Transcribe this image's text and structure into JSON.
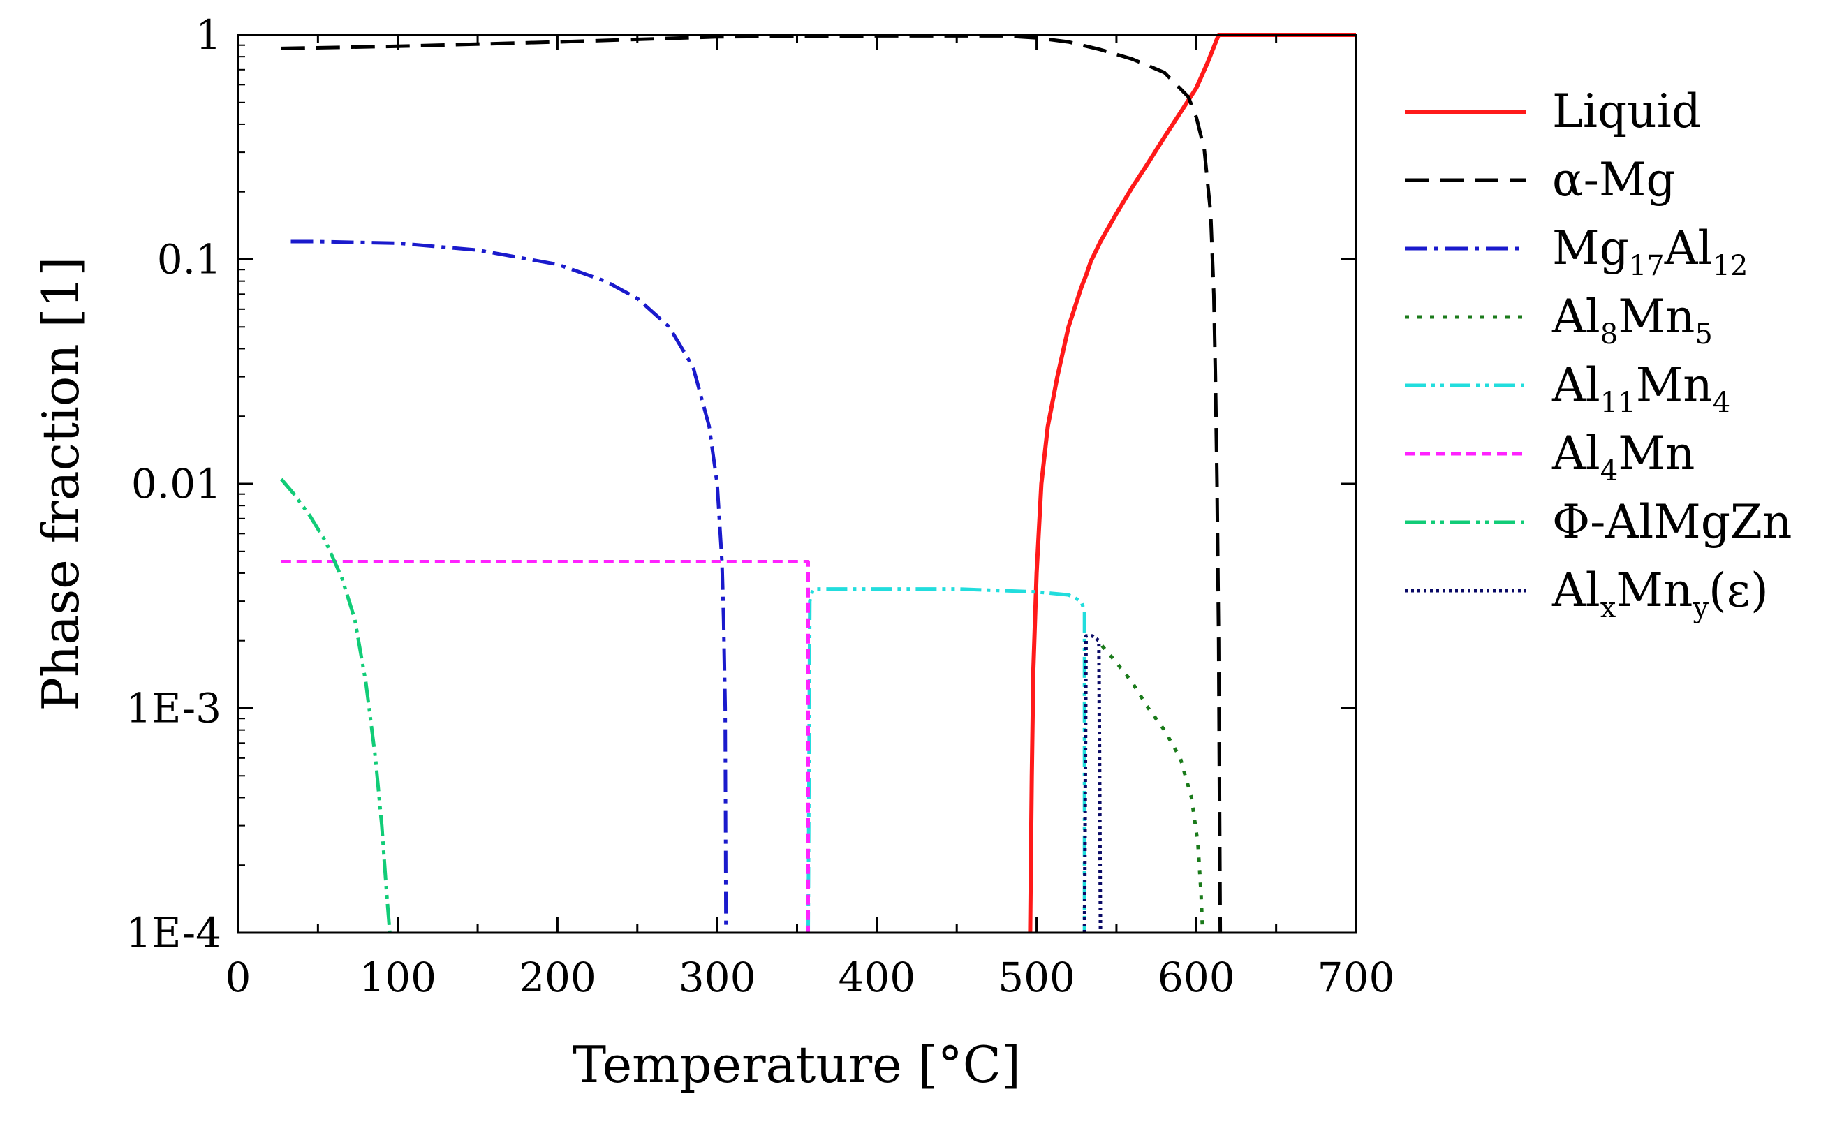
{
  "chart_data": {
    "type": "line",
    "title": "",
    "xlabel": "Temperature [°C]",
    "ylabel": "Phase fraction [1]",
    "xlim": [
      0,
      700
    ],
    "ylim": [
      0.0001,
      1
    ],
    "yscale": "log",
    "x_ticks": [
      0,
      100,
      200,
      300,
      400,
      500,
      600,
      700
    ],
    "x_tick_labels": [
      "0",
      "100",
      "200",
      "300",
      "400",
      "500",
      "600",
      "700"
    ],
    "y_ticks": [
      1,
      0.1,
      0.01,
      0.001,
      0.0001
    ],
    "y_tick_labels": [
      "1",
      "0.1",
      "0.01",
      "1E-3",
      "1E-4"
    ],
    "grid": false,
    "legend_position": "right",
    "series": [
      {
        "name": "Liquid",
        "legend": [
          {
            "t": "Liquid"
          }
        ],
        "color": "#ff1a1a",
        "dash": "solid",
        "points": [
          [
            496,
            0.0001
          ],
          [
            497,
            0.0005
          ],
          [
            498,
            0.0015
          ],
          [
            500,
            0.004
          ],
          [
            503,
            0.01
          ],
          [
            507,
            0.018
          ],
          [
            513,
            0.03
          ],
          [
            520,
            0.05
          ],
          [
            528,
            0.075
          ],
          [
            531,
            0.085
          ],
          [
            534,
            0.098
          ],
          [
            540,
            0.12
          ],
          [
            550,
            0.16
          ],
          [
            560,
            0.21
          ],
          [
            570,
            0.27
          ],
          [
            580,
            0.35
          ],
          [
            590,
            0.45
          ],
          [
            600,
            0.58
          ],
          [
            607,
            0.75
          ],
          [
            614,
            1.0
          ],
          [
            700,
            1.0
          ]
        ]
      },
      {
        "name": "α-Mg",
        "legend": [
          {
            "t": "α-Mg"
          }
        ],
        "color": "#000000",
        "dash": "long-dash",
        "points": [
          [
            27,
            0.87
          ],
          [
            100,
            0.89
          ],
          [
            200,
            0.93
          ],
          [
            300,
            0.98
          ],
          [
            400,
            0.99
          ],
          [
            480,
            0.99
          ],
          [
            500,
            0.97
          ],
          [
            520,
            0.93
          ],
          [
            540,
            0.86
          ],
          [
            560,
            0.78
          ],
          [
            580,
            0.68
          ],
          [
            595,
            0.53
          ],
          [
            600,
            0.43
          ],
          [
            605,
            0.31
          ],
          [
            609,
            0.16
          ],
          [
            611,
            0.07
          ],
          [
            612,
            0.03
          ],
          [
            613,
            0.01
          ],
          [
            614,
            0.002
          ],
          [
            615,
            0.0001
          ]
        ]
      },
      {
        "name": "Mg17Al12",
        "legend": [
          {
            "t": "Mg"
          },
          {
            "t": "17",
            "sub": true
          },
          {
            "t": "Al"
          },
          {
            "t": "12",
            "sub": true
          }
        ],
        "color": "#1a1acc",
        "dash": "dash-dot",
        "points": [
          [
            33,
            0.12
          ],
          [
            50,
            0.12
          ],
          [
            100,
            0.118
          ],
          [
            150,
            0.11
          ],
          [
            200,
            0.095
          ],
          [
            230,
            0.08
          ],
          [
            250,
            0.067
          ],
          [
            270,
            0.05
          ],
          [
            285,
            0.033
          ],
          [
            295,
            0.018
          ],
          [
            300,
            0.01
          ],
          [
            303,
            0.0045
          ],
          [
            304,
            0.0025
          ],
          [
            305,
            0.001
          ],
          [
            305.5,
            0.0001
          ]
        ]
      },
      {
        "name": "Al8Mn5",
        "legend": [
          {
            "t": "Al"
          },
          {
            "t": "8",
            "sub": true
          },
          {
            "t": "Mn"
          },
          {
            "t": "5",
            "sub": true
          }
        ],
        "color": "#1a7a1a",
        "dash": "dot",
        "points": [
          [
            541,
            0.0019
          ],
          [
            550,
            0.0016
          ],
          [
            560,
            0.0013
          ],
          [
            570,
            0.001
          ],
          [
            580,
            0.0008
          ],
          [
            590,
            0.0006
          ],
          [
            597,
            0.0004
          ],
          [
            601,
            0.00025
          ],
          [
            603,
            0.00015
          ],
          [
            604,
            0.0001
          ]
        ]
      },
      {
        "name": "Al11Mn4",
        "legend": [
          {
            "t": "Al"
          },
          {
            "t": "11",
            "sub": true
          },
          {
            "t": "Mn"
          },
          {
            "t": "4",
            "sub": true
          }
        ],
        "color": "#22dddd",
        "dash": "dash-dot-dot",
        "points": [
          [
            357,
            0.0001
          ],
          [
            358,
            0.003
          ],
          [
            360,
            0.0034
          ],
          [
            400,
            0.0034
          ],
          [
            450,
            0.0034
          ],
          [
            500,
            0.0033
          ],
          [
            520,
            0.0032
          ],
          [
            528,
            0.003
          ],
          [
            530,
            0.0027
          ],
          [
            530,
            0.0001
          ]
        ]
      },
      {
        "name": "Al4Mn",
        "legend": [
          {
            "t": "Al"
          },
          {
            "t": "4",
            "sub": true
          },
          {
            "t": "Mn"
          }
        ],
        "color": "#ff22ff",
        "dash": "short-dash",
        "points": [
          [
            27,
            0.0045
          ],
          [
            357,
            0.0045
          ],
          [
            357,
            0.0001
          ]
        ]
      },
      {
        "name": "Φ-AlMgZn",
        "legend": [
          {
            "t": "Φ-AlMgZn"
          }
        ],
        "color": "#11cc77",
        "dash": "dash-dot-dot",
        "points": [
          [
            27,
            0.0105
          ],
          [
            35,
            0.009
          ],
          [
            45,
            0.0072
          ],
          [
            55,
            0.0055
          ],
          [
            65,
            0.0038
          ],
          [
            73,
            0.0025
          ],
          [
            80,
            0.0013
          ],
          [
            86,
            0.0006
          ],
          [
            90,
            0.0003
          ],
          [
            93,
            0.00015
          ],
          [
            95,
            0.0001
          ]
        ]
      },
      {
        "name": "AlxMny(ε)",
        "legend": [
          {
            "t": "Al"
          },
          {
            "t": "x",
            "sub": true
          },
          {
            "t": "Mn"
          },
          {
            "t": "y",
            "sub": true
          },
          {
            "t": "(ε)"
          }
        ],
        "color": "#0a0a66",
        "dash": "fine-dot",
        "points": [
          [
            530,
            0.0001
          ],
          [
            531,
            0.0021
          ],
          [
            535,
            0.0021
          ],
          [
            539,
            0.002
          ],
          [
            540,
            0.0001
          ]
        ]
      }
    ]
  }
}
